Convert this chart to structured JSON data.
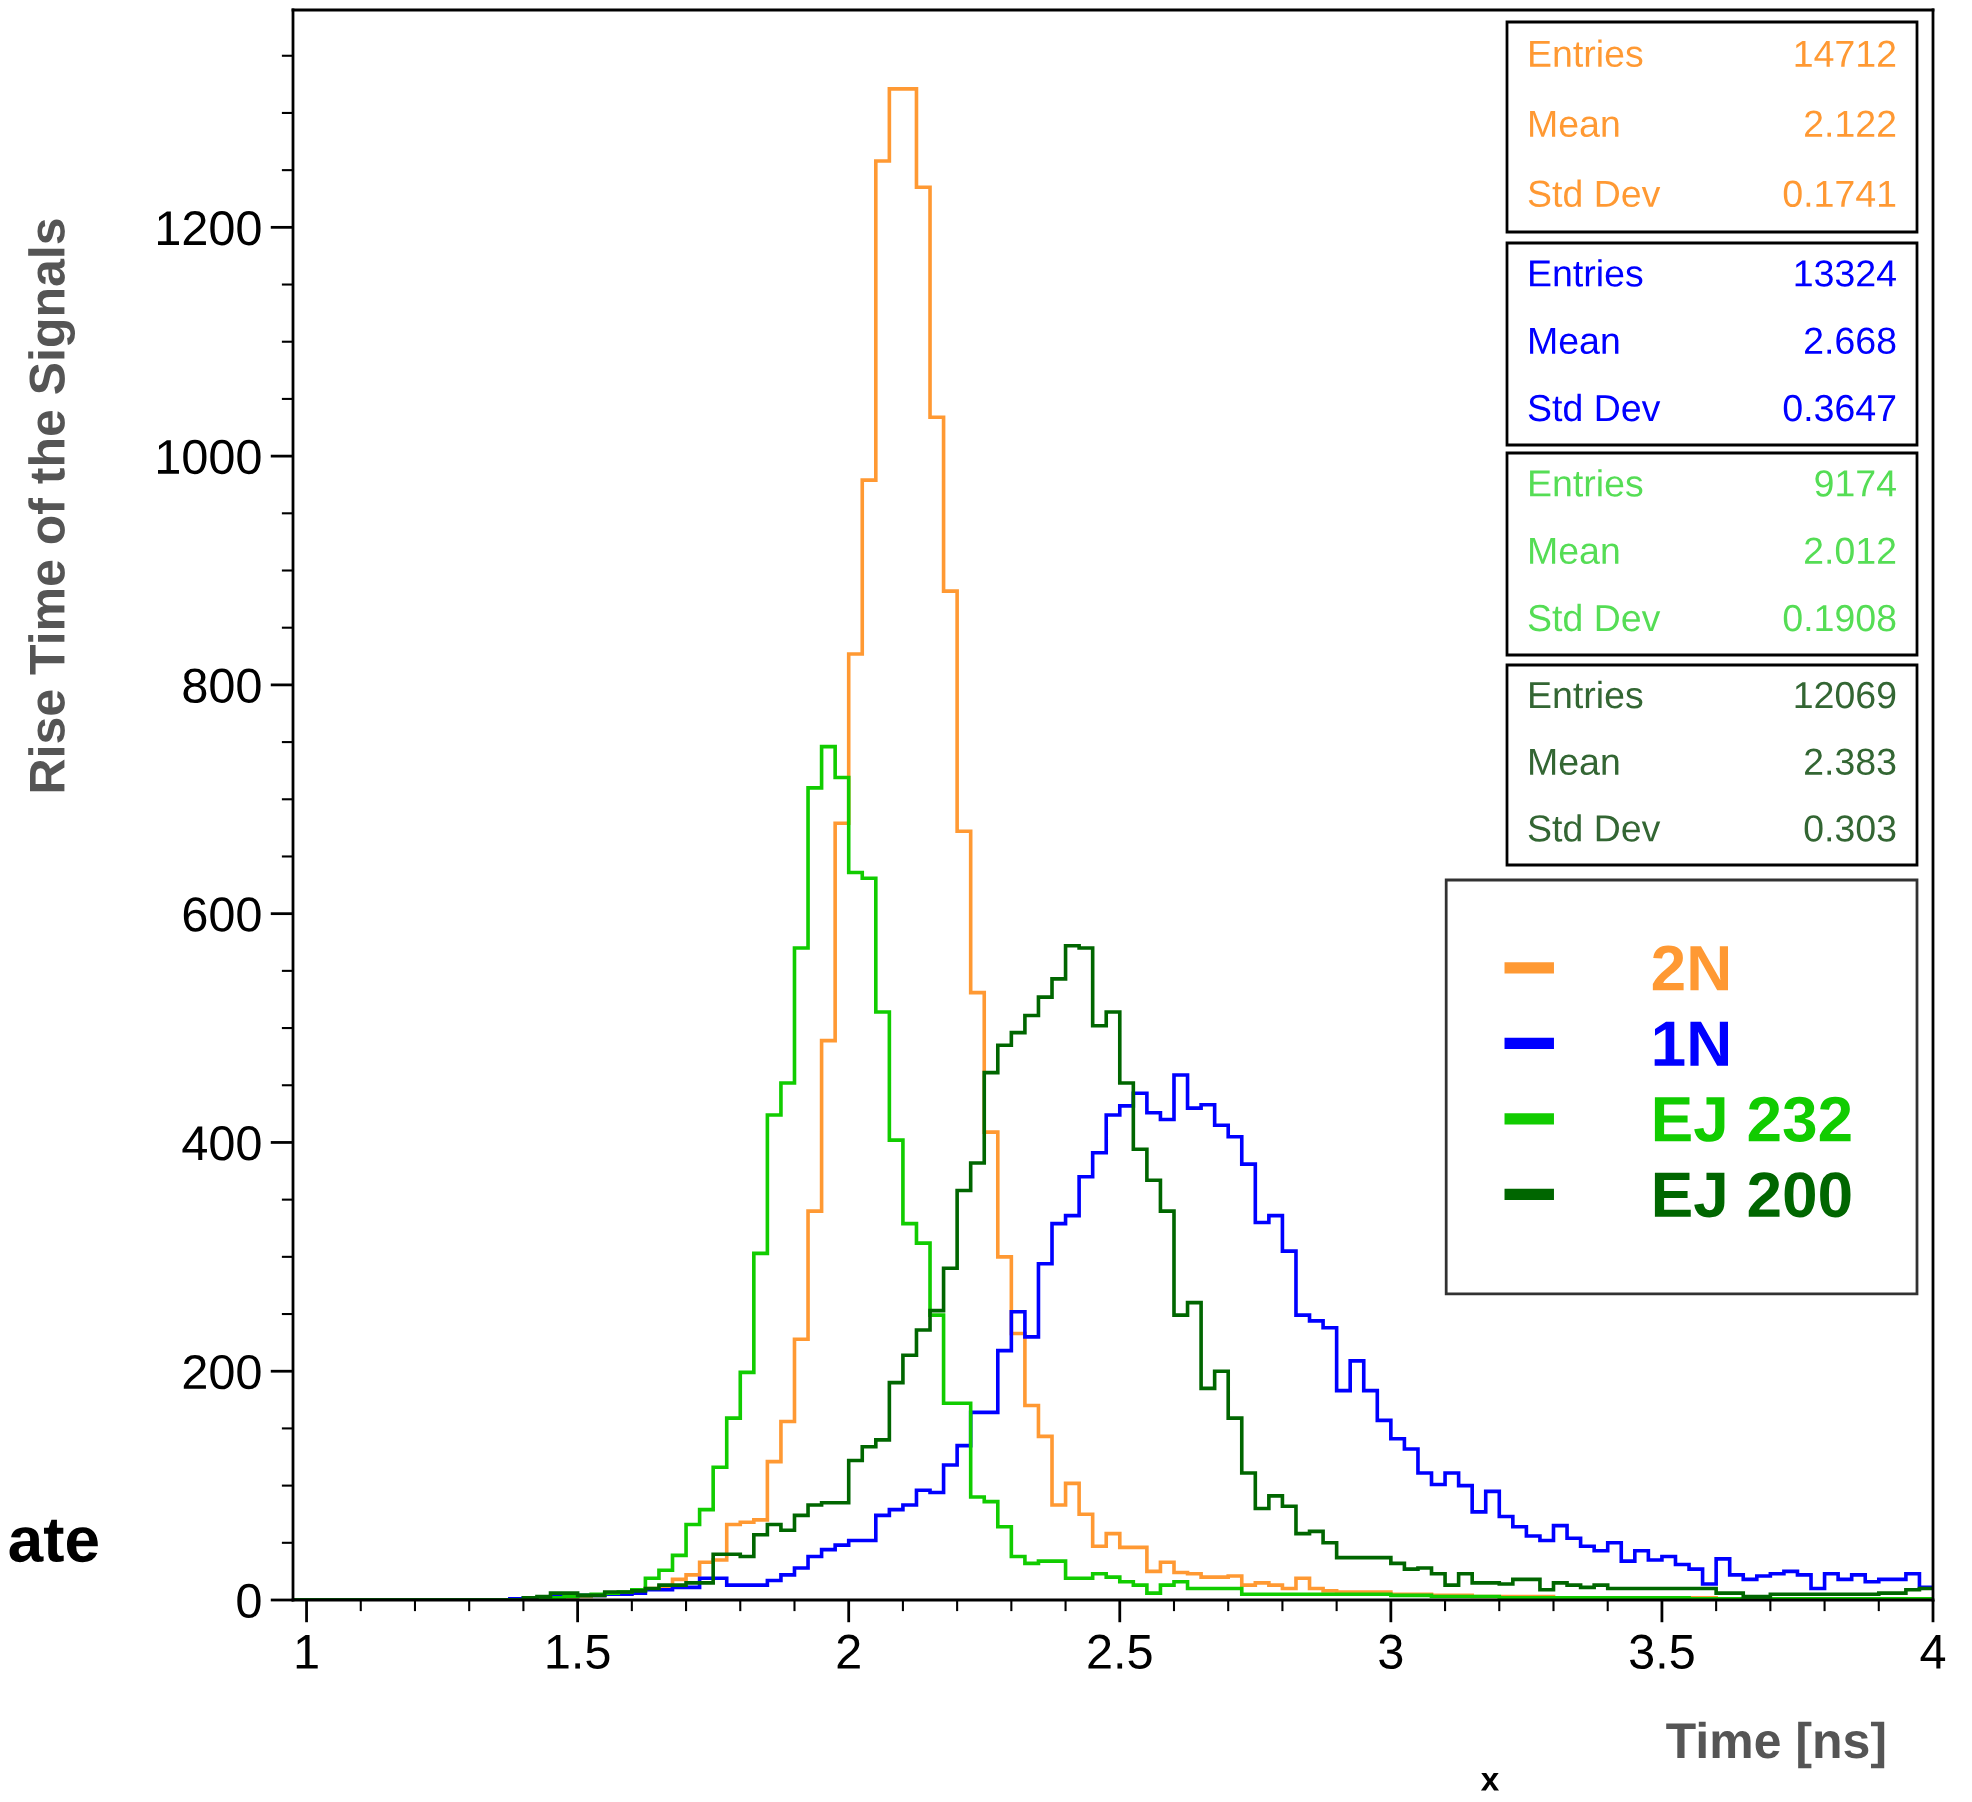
{
  "chart_data": {
    "type": "histogram",
    "ylabel": "Rise Time of the Signals",
    "xlabel": "Time [ns]",
    "bins": [
      0.975,
      1.375,
      1.4,
      1.425,
      1.45,
      1.475,
      1.5,
      1.525,
      1.55,
      1.575,
      1.6,
      1.625,
      1.65,
      1.675,
      1.7,
      1.725,
      1.75,
      1.775,
      1.8,
      1.825,
      1.85,
      1.875,
      1.9,
      1.925,
      1.95,
      1.975,
      2,
      2.025,
      2.05,
      2.075,
      2.1,
      2.125,
      2.15,
      2.175,
      2.2,
      2.225,
      2.25,
      2.275,
      2.3,
      2.325,
      2.35,
      2.375,
      2.4,
      2.425,
      2.45,
      2.475,
      2.5,
      2.525,
      2.55,
      2.575,
      2.6,
      2.625,
      2.65,
      2.675,
      2.7,
      2.725,
      2.75,
      2.775,
      2.8,
      2.825,
      2.85,
      2.875,
      2.9,
      2.925,
      2.95,
      2.975,
      3,
      3.025,
      3.05,
      3.075,
      3.1,
      3.125,
      3.15,
      3.175,
      3.2,
      3.225,
      3.25,
      3.275,
      3.3,
      3.325,
      3.35,
      3.375,
      3.4,
      3.425,
      3.45,
      3.475,
      3.5,
      3.525,
      3.55,
      3.575,
      3.6,
      3.625,
      3.65,
      3.675,
      3.7,
      3.725,
      3.75,
      3.775,
      3.8,
      3.825,
      3.85,
      3.875,
      3.9,
      3.925,
      3.95,
      3.975,
      4
    ],
    "series": [
      {
        "name": "2N",
        "color": "#ff9933",
        "values": [
          0,
          0,
          0,
          1,
          2,
          2,
          3,
          4,
          5,
          5,
          8,
          10,
          12,
          18,
          22,
          33,
          35,
          66,
          68,
          70,
          121,
          156,
          228,
          340,
          489,
          679,
          827,
          979,
          1258,
          1321,
          1321,
          1235,
          1034,
          882,
          672,
          531,
          409,
          300,
          233,
          170,
          143,
          83,
          102,
          75,
          47,
          58,
          46,
          46,
          25,
          33,
          24,
          23,
          20,
          20,
          21,
          13,
          15,
          13,
          10,
          19,
          10,
          8,
          7,
          7,
          7,
          7,
          5,
          5,
          5,
          4,
          4,
          4,
          3,
          3,
          3,
          3,
          3,
          3,
          2,
          2,
          2,
          2,
          2,
          2,
          2,
          2,
          2,
          2,
          2,
          2,
          1,
          1,
          1,
          1,
          1,
          1,
          1,
          1,
          1,
          1,
          1,
          1,
          1,
          1,
          1,
          1
        ]
      },
      {
        "name": "1N",
        "color": "#0000ff",
        "values": [
          0,
          1,
          2,
          2,
          3,
          3,
          4,
          4,
          5,
          5,
          6,
          9,
          9,
          11,
          11,
          19,
          19,
          13,
          13,
          13,
          17,
          22,
          28,
          38,
          44,
          48,
          52,
          52,
          74,
          79,
          83,
          96,
          94,
          118,
          135,
          164,
          164,
          218,
          252,
          230,
          294,
          329,
          336,
          370,
          391,
          424,
          432,
          443,
          426,
          420,
          459,
          430,
          433,
          415,
          405,
          381,
          330,
          336,
          305,
          249,
          244,
          238,
          183,
          209,
          183,
          157,
          141,
          132,
          111,
          101,
          111,
          100,
          77,
          95,
          73,
          64,
          56,
          52,
          65,
          54,
          47,
          43,
          50,
          34,
          43,
          35,
          38,
          31,
          27,
          14,
          36,
          22,
          18,
          21,
          23,
          25,
          22,
          10,
          23,
          18,
          22,
          16,
          18,
          18,
          23,
          11
        ]
      },
      {
        "name": "EJ 232",
        "color": "#11cc00",
        "values": [
          0,
          0,
          0,
          1,
          2,
          3,
          4,
          5,
          6,
          7,
          9,
          19,
          26,
          39,
          66,
          79,
          116,
          159,
          199,
          303,
          424,
          452,
          570,
          710,
          746,
          719,
          636,
          631,
          514,
          402,
          329,
          312,
          249,
          172,
          172,
          90,
          86,
          64,
          38,
          32,
          34,
          34,
          19,
          19,
          23,
          20,
          16,
          13,
          6,
          13,
          16,
          10,
          10,
          10,
          10,
          5,
          5,
          5,
          5,
          5,
          5,
          5,
          5,
          5,
          5,
          5,
          4,
          4,
          4,
          3,
          3,
          3,
          3,
          3,
          2,
          2,
          2,
          2,
          2,
          2,
          2,
          2,
          2,
          2,
          2,
          2,
          2,
          2,
          1,
          1,
          1,
          1,
          1,
          1,
          1,
          1,
          1,
          1,
          1,
          1,
          1,
          1,
          1,
          1,
          1,
          1
        ]
      },
      {
        "name": "EJ 200",
        "color": "#006600",
        "values": [
          0,
          0,
          2,
          3,
          6,
          6,
          4,
          4,
          7,
          7,
          8,
          10,
          13,
          13,
          15,
          15,
          40,
          40,
          38,
          57,
          66,
          61,
          74,
          83,
          85,
          85,
          122,
          134,
          140,
          190,
          214,
          236,
          253,
          290,
          358,
          382,
          461,
          485,
          496,
          511,
          527,
          543,
          572,
          570,
          502,
          514,
          452,
          394,
          367,
          340,
          249,
          260,
          185,
          200,
          159,
          111,
          80,
          91,
          82,
          58,
          60,
          50,
          37,
          37,
          37,
          37,
          32,
          27,
          28,
          23,
          13,
          23,
          15,
          15,
          14,
          18,
          18,
          9,
          15,
          13,
          11,
          13,
          10,
          10,
          10,
          10,
          10,
          10,
          10,
          10,
          6,
          6,
          3,
          3,
          5,
          5,
          5,
          5,
          5,
          5,
          5,
          5,
          6,
          6,
          9,
          10
        ]
      }
    ],
    "xlim": [
      0.975,
      4
    ],
    "xticks": [
      1,
      1.5,
      2,
      2.5,
      3,
      3.5,
      4
    ],
    "ylim": [
      0,
      1390
    ],
    "yticks": [
      0,
      200,
      400,
      600,
      800,
      1000,
      1200
    ],
    "grid": false,
    "legend": "right",
    "annotations": [
      "Entries 14712\nMean 2.122\nStd Dev 0.1741",
      "Entries 13324\nMean 2.668\nStd Dev 0.3647",
      "Entries 9174\nMean 2.012\nStd Dev 0.1908",
      "Entries 12069\nMean 2.383\nStd Dev 0.303",
      "ate",
      "x"
    ]
  }
}
